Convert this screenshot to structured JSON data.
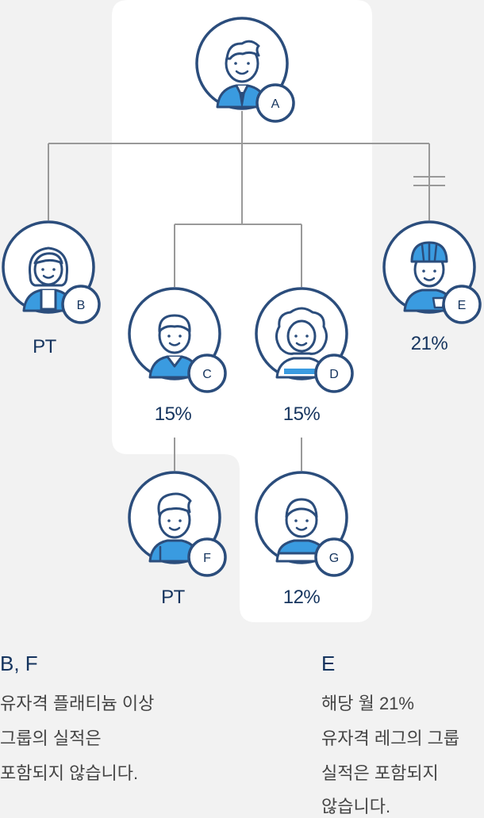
{
  "nodes": {
    "A": {
      "badge": "A",
      "value": ""
    },
    "B": {
      "badge": "B",
      "value": "PT"
    },
    "C": {
      "badge": "C",
      "value": "15%"
    },
    "D": {
      "badge": "D",
      "value": "15%"
    },
    "E": {
      "badge": "E",
      "value": "21%"
    },
    "F": {
      "badge": "F",
      "value": "PT"
    },
    "G": {
      "badge": "G",
      "value": "12%"
    }
  },
  "notes": {
    "bf": {
      "title": "B, F",
      "lines": [
        "유자격 플래티늄 이상",
        "그룹의 실적은",
        "포함되지 않습니다."
      ]
    },
    "e": {
      "title": "E",
      "lines": [
        "해당 월 21%",
        "유자격 레그의 그룹",
        "실적은 포함되지",
        "않습니다."
      ]
    }
  },
  "colors": {
    "background": "#f2f2f2",
    "highlight_panel": "#ffffff",
    "circle_stroke": "#2b4d7c",
    "accent_blue": "#3a9be0",
    "connector": "#999999",
    "label": "#15345e"
  }
}
